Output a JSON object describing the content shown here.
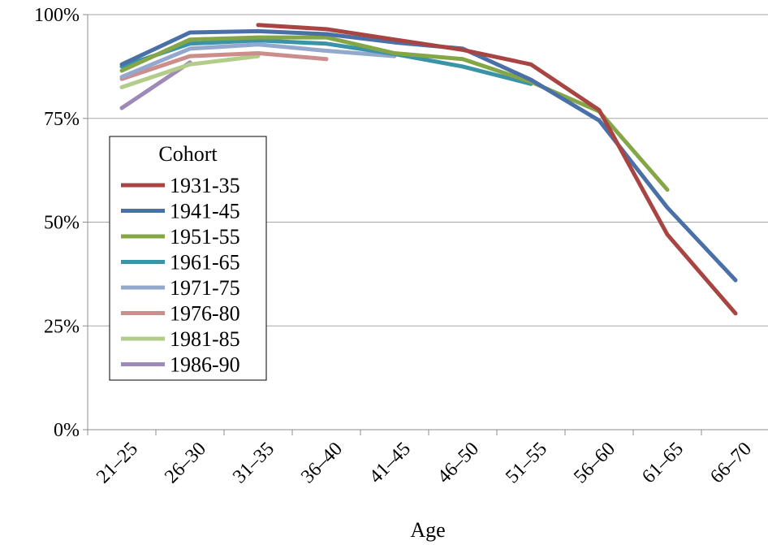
{
  "chart_data": {
    "type": "line",
    "categories": [
      "21–25",
      "26–30",
      "31–35",
      "36–40",
      "41–45",
      "46–50",
      "51–55",
      "56–60",
      "61–65",
      "66–70"
    ],
    "xlabel": "Age",
    "ylabel": "",
    "ylim": [
      0,
      100
    ],
    "y_ticks": [
      "0%",
      "25%",
      "50%",
      "75%",
      "100%"
    ],
    "grid": true,
    "legend": {
      "title": "Cohort",
      "placement": "left"
    },
    "series": [
      {
        "name": "1931-35",
        "color": "#a84543",
        "values": [
          null,
          null,
          97.5,
          96.5,
          94,
          91.5,
          88,
          77,
          47,
          28
        ]
      },
      {
        "name": "1941-45",
        "color": "#4a70a8",
        "values": [
          88,
          95.7,
          96,
          95.3,
          93.3,
          91.8,
          84.3,
          74.5,
          53.5,
          36
        ]
      },
      {
        "name": "1951-55",
        "color": "#84a647",
        "values": [
          86.5,
          94,
          94.5,
          94.5,
          90.7,
          89.3,
          83.8,
          76.7,
          57.8,
          null
        ]
      },
      {
        "name": "1961-65",
        "color": "#3b93a8",
        "values": [
          87.5,
          93,
          93.8,
          93,
          90.5,
          87.5,
          83.3,
          null,
          null,
          null
        ]
      },
      {
        "name": "1971-75",
        "color": "#93a8cc",
        "values": [
          85,
          91.8,
          92.8,
          91.3,
          90,
          null,
          null,
          null,
          null,
          null
        ]
      },
      {
        "name": "1976-80",
        "color": "#cc8e8c",
        "values": [
          84.5,
          90,
          90.7,
          89.3,
          null,
          null,
          null,
          null,
          null,
          null
        ]
      },
      {
        "name": "1981-85",
        "color": "#b2cc8a",
        "values": [
          82.5,
          88,
          90,
          null,
          null,
          null,
          null,
          null,
          null,
          null
        ]
      },
      {
        "name": "1986-90",
        "color": "#9d8ab8",
        "values": [
          77.5,
          88.5,
          null,
          null,
          null,
          null,
          null,
          null,
          null,
          null
        ]
      }
    ]
  }
}
